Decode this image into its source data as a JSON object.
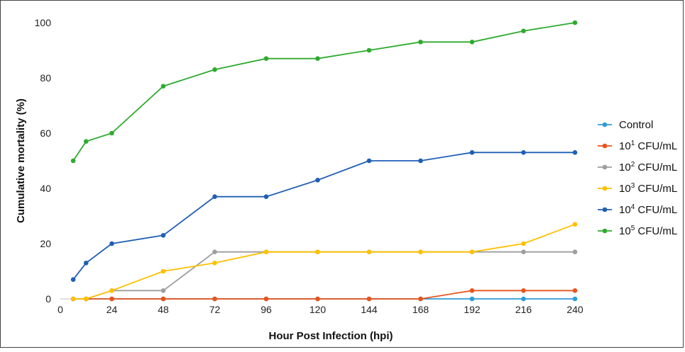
{
  "chart_data": {
    "type": "line",
    "xlabel": "Hour Post Infection (hpi)",
    "ylabel": "Cumulative mortality (%)",
    "xlim": [
      0,
      240
    ],
    "ylim": [
      0,
      100
    ],
    "x_ticks": [
      "0",
      "24",
      "48",
      "72",
      "96",
      "120",
      "144",
      "168",
      "192",
      "216",
      "240"
    ],
    "y_ticks": [
      "0",
      "20",
      "40",
      "60",
      "80",
      "100"
    ],
    "grid": false,
    "legend_position": "right",
    "x": [
      6,
      12,
      24,
      48,
      72,
      96,
      120,
      144,
      168,
      192,
      216,
      240
    ],
    "series": [
      {
        "name": "Control",
        "name_base": "Control",
        "name_exp": "",
        "name_tail": "",
        "color": "#2E9BD6",
        "values": [
          0,
          0,
          0,
          0,
          0,
          0,
          0,
          0,
          0,
          0,
          0,
          0
        ]
      },
      {
        "name": "10^1 CFU/mL",
        "name_base": "10",
        "name_exp": "1",
        "name_tail": " CFU/mL",
        "color": "#E8541C",
        "values": [
          0,
          0,
          0,
          0,
          0,
          0,
          0,
          0,
          0,
          3,
          3,
          3
        ]
      },
      {
        "name": "10^2 CFU/mL",
        "name_base": "10",
        "name_exp": "2",
        "name_tail": " CFU/mL",
        "color": "#9E9E9E",
        "values": [
          0,
          0,
          3,
          3,
          17,
          17,
          17,
          17,
          17,
          17,
          17,
          17
        ]
      },
      {
        "name": "10^3 CFU/mL",
        "name_base": "10",
        "name_exp": "3",
        "name_tail": " CFU/mL",
        "color": "#FFC000",
        "values": [
          0,
          0,
          3,
          10,
          13,
          17,
          17,
          17,
          17,
          17,
          20,
          27
        ]
      },
      {
        "name": "10^4 CFU/mL",
        "name_base": "10",
        "name_exp": "4",
        "name_tail": " CFU/mL",
        "color": "#1F5FB4",
        "values": [
          7,
          13,
          20,
          23,
          37,
          37,
          43,
          50,
          50,
          53,
          53,
          53
        ]
      },
      {
        "name": "10^5 CFU/mL",
        "name_base": "10",
        "name_exp": "5",
        "name_tail": " CFU/mL",
        "color": "#2EAB2E",
        "values": [
          50,
          57,
          60,
          77,
          83,
          87,
          87,
          90,
          93,
          93,
          97,
          100
        ]
      }
    ]
  }
}
